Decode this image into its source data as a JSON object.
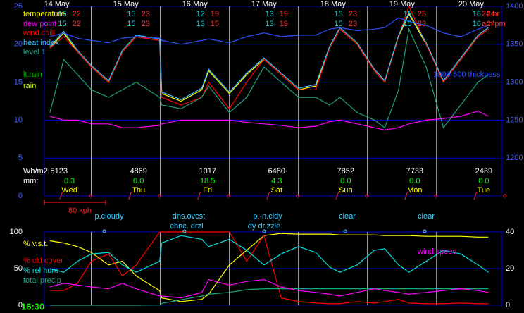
{
  "chart_data": [
    {
      "type": "line",
      "categories": [
        "14 May",
        "15 May",
        "16 May",
        "17 May",
        "18 May",
        "19 May",
        "20 May"
      ],
      "weekdays": [
        "Wed",
        "Thu",
        "Fri",
        "Sat",
        "Sun",
        "Mon",
        "Tue"
      ],
      "row_labels": [
        "24 hr",
        "am pm"
      ],
      "minmax": [
        [
          [
            15,
            22
          ],
          [
            15,
            23
          ],
          [
            12,
            19
          ],
          [
            13,
            19
          ],
          [
            15,
            23
          ],
          [
            15,
            25
          ],
          [
            16,
            24
          ]
        ],
        [
          [
            15,
            22
          ],
          [
            15,
            23
          ],
          [
            13,
            15
          ],
          [
            13,
            19
          ],
          [
            15,
            23
          ],
          [
            15,
            23
          ],
          [
            16,
            24
          ]
        ]
      ],
      "solar_label": "Wh/m2:",
      "solar": [
        5123,
        4869,
        1017,
        6480,
        7852,
        7733,
        2439
      ],
      "rain_label": "mm:",
      "rain": [
        "0.3",
        "0.0",
        "18.5",
        "4.3",
        "0.0",
        "0.0",
        "0.0"
      ],
      "labels": [
        {
          "name": "lt.rain",
          "color": "#00c000"
        },
        {
          "name": "rain",
          "color": "#c0ff00"
        }
      ],
      "x": [
        0.4,
        0.6,
        0.8,
        1.0,
        1.25,
        1.45,
        1.65,
        1.99,
        2.02,
        2.3,
        2.6,
        2.7,
        3.0,
        3.25,
        3.5,
        3.75,
        4.0,
        4.25,
        4.45,
        4.6,
        4.85,
        5.1,
        5.25,
        5.45,
        5.6,
        5.85,
        6.1,
        6.35,
        6.6,
        6.75
      ],
      "xlim": [
        0.32,
        6.94
      ],
      "ylim": [
        0,
        25
      ],
      "yticks": [
        0,
        5,
        10,
        15,
        20,
        25
      ],
      "y2lim": [
        1150,
        1400
      ],
      "y2ticks": [
        1200,
        1250,
        1300,
        1350,
        1400
      ],
      "grid": true,
      "series": [
        {
          "name": "temperature",
          "color": "#ffff00",
          "values": [
            19.5,
            21.5,
            19,
            17,
            15,
            19,
            21,
            20.5,
            13.5,
            12.5,
            14,
            16.5,
            13.5,
            16,
            18,
            16,
            14,
            14.5,
            19.5,
            22,
            20,
            16.5,
            15,
            21,
            24,
            20,
            15,
            18,
            21,
            22
          ]
        },
        {
          "name": "dew point",
          "color": "#ff00ff",
          "values": [
            10.5,
            10,
            10,
            9.5,
            9.5,
            9,
            9,
            9.3,
            9.5,
            10,
            10,
            10,
            10,
            9.7,
            9.5,
            9.3,
            9,
            9.2,
            9.8,
            10,
            9.5,
            9,
            8.7,
            9,
            9.5,
            10,
            10.2,
            10.5,
            11.2,
            10.5
          ]
        },
        {
          "name": "wind chill",
          "color": "#ff0000",
          "values": [
            19.5,
            21,
            19,
            17,
            15,
            19,
            21,
            20.5,
            13,
            12,
            13,
            15,
            11.5,
            15,
            18,
            16,
            14,
            14,
            19.5,
            22,
            20,
            16.5,
            15,
            21,
            25,
            20,
            15,
            18,
            21,
            22
          ]
        },
        {
          "name": "heat index",
          "color": "#40c0ff",
          "values": [
            19.7,
            21.7,
            19.2,
            17.2,
            15.2,
            19.2,
            21.2,
            20.7,
            13.7,
            12.7,
            14.2,
            16.7,
            13.7,
            16.2,
            18.2,
            16.2,
            14.2,
            14.7,
            19.7,
            22.2,
            20.2,
            16.7,
            15.2,
            21.2,
            24.2,
            20.2,
            15.2,
            18.2,
            21.2,
            22.2
          ]
        },
        {
          "name": "level 1",
          "color": "#20a080",
          "values": [
            11,
            18,
            16,
            14,
            13,
            14,
            15,
            13,
            12,
            11.5,
            13,
            14.5,
            11,
            13,
            17,
            15,
            13,
            13,
            12,
            13,
            11,
            10,
            9,
            14,
            22,
            17,
            9,
            12,
            15,
            16
          ]
        },
        {
          "name": "1000-500 thickness",
          "color": "#3050ff",
          "axis": "y2",
          "values": [
            1360,
            1365,
            1358,
            1355,
            1352,
            1358,
            1360,
            1358,
            1355,
            1350,
            1355,
            1357,
            1352,
            1360,
            1365,
            1360,
            1362,
            1362,
            1370,
            1372,
            1368,
            1370,
            1372,
            1385,
            1380,
            1375,
            1365,
            1360,
            1370,
            1375
          ]
        }
      ]
    },
    {
      "type": "line",
      "sky": [
        "p.cloudy",
        "dns.ovcst",
        "chnc. drzl",
        "p.-n.cldy",
        "dy drizzle",
        "clear",
        "clear"
      ],
      "wind_scale": "80 kph",
      "time": "16:30",
      "x": [
        0.4,
        0.6,
        0.8,
        1.0,
        1.25,
        1.45,
        1.65,
        1.99,
        2.02,
        2.3,
        2.6,
        2.7,
        3.0,
        3.25,
        3.5,
        3.75,
        4.0,
        4.25,
        4.45,
        4.6,
        4.85,
        5.1,
        5.25,
        5.45,
        5.6,
        5.85,
        6.1,
        6.35,
        6.6,
        6.75
      ],
      "xlim": [
        0.32,
        6.94
      ],
      "ylim": [
        0,
        100
      ],
      "yticks": [
        0,
        50,
        100
      ],
      "y2lim": [
        0,
        40
      ],
      "y2ticks": [
        0,
        20,
        40
      ],
      "series": [
        {
          "name": "% v.s.t.",
          "color": "#ffff00",
          "values": [
            88,
            85,
            80,
            72,
            55,
            60,
            40,
            20,
            10,
            5,
            8,
            15,
            55,
            75,
            95,
            98,
            97,
            97,
            97,
            96,
            96,
            96,
            95,
            95,
            95,
            94,
            94,
            94,
            93,
            93
          ]
        },
        {
          "name": "% cld cover",
          "color": "#ff0000",
          "values": [
            20,
            20,
            30,
            60,
            70,
            40,
            55,
            100,
            100,
            100,
            100,
            100,
            100,
            60,
            95,
            10,
            5,
            3,
            2,
            2,
            5,
            3,
            5,
            8,
            3,
            2,
            2,
            3,
            2,
            2
          ]
        },
        {
          "name": "% rel hum",
          "color": "#00e0e0",
          "values": [
            50,
            45,
            60,
            70,
            72,
            55,
            45,
            60,
            85,
            95,
            90,
            80,
            90,
            75,
            55,
            70,
            80,
            72,
            52,
            45,
            55,
            75,
            77,
            55,
            45,
            60,
            75,
            70,
            55,
            45
          ]
        },
        {
          "name": "total precip",
          "color": "#20a080",
          "axis": "y2",
          "values": [
            0,
            0,
            0,
            0,
            0,
            0,
            0,
            0.2,
            1,
            3,
            5,
            6,
            7,
            8.5,
            9,
            9,
            9,
            9,
            9,
            9,
            9,
            9,
            9,
            9,
            9,
            9,
            9,
            9,
            9,
            9
          ]
        },
        {
          "name": "wind speed",
          "color": "#ff00ff",
          "axis": "y2",
          "values": [
            10,
            12,
            11,
            10,
            9,
            12,
            9,
            5,
            5,
            4,
            7,
            14,
            11,
            13,
            14,
            10,
            8,
            7,
            6,
            5,
            7,
            9,
            8,
            7,
            6,
            7,
            8,
            9,
            8,
            7
          ]
        }
      ]
    }
  ]
}
